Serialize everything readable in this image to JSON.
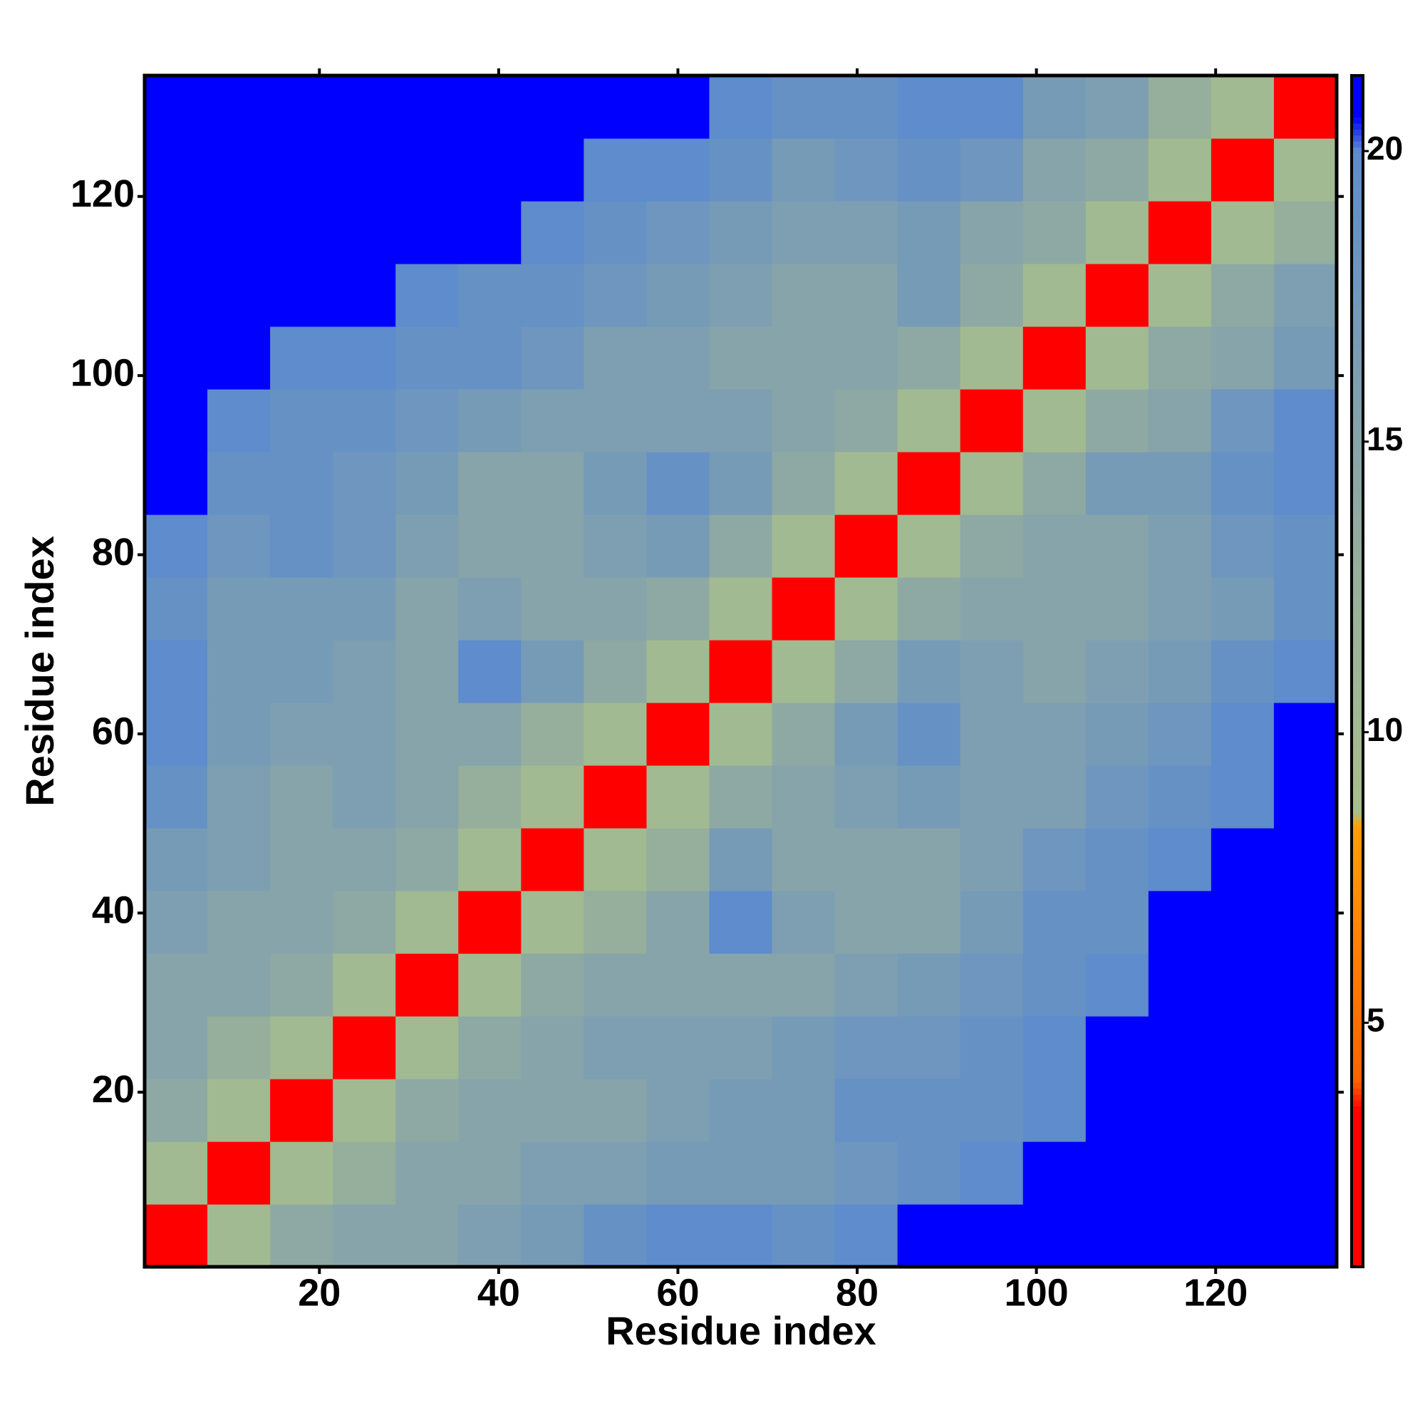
{
  "chart_data": {
    "type": "heatmap",
    "xlabel": "Residue index",
    "ylabel": "Residue index",
    "xbins": [
      0.5,
      7.5,
      14.5,
      21.5,
      28.5,
      35.5,
      42.5,
      49.5,
      56.5,
      63.5,
      70.5,
      77.5,
      84.5,
      91.5,
      98.5,
      105.5,
      112.5,
      119.5,
      126.5,
      133.5
    ],
    "ybins": [
      0.5,
      7.5,
      14.5,
      21.5,
      28.5,
      35.5,
      42.5,
      49.5,
      56.5,
      63.5,
      70.5,
      77.5,
      84.5,
      91.5,
      98.5,
      105.5,
      112.5,
      119.5,
      126.5,
      133.5
    ],
    "xlim": [
      0.5,
      133.5
    ],
    "ylim": [
      0.5,
      133.5
    ],
    "xticks": [
      20,
      40,
      60,
      80,
      100,
      120
    ],
    "yticks": [
      20,
      40,
      60,
      80,
      100,
      120
    ],
    "zlim": [
      0.8,
      21.3
    ],
    "zticks": [
      5,
      10,
      15,
      20
    ],
    "colorscale": [
      [
        0.8,
        "#ff0000"
      ],
      [
        3.5,
        "#ff0000"
      ],
      [
        4.0,
        "#ff6000"
      ],
      [
        8.4,
        "#ffa000"
      ],
      [
        8.6,
        "#a8bf8c"
      ],
      [
        13,
        "#96ae9c"
      ],
      [
        20,
        "#5e8ccc"
      ],
      [
        20.6,
        "#0000ff"
      ]
    ],
    "z": [
      [
        3,
        10,
        14,
        15,
        15,
        16,
        17,
        19,
        20,
        20,
        19,
        20,
        21,
        21,
        21,
        21,
        21,
        21,
        21
      ],
      [
        10,
        3,
        10,
        13,
        15,
        15,
        16,
        16,
        17,
        17,
        17,
        18,
        19,
        20,
        21,
        21,
        21,
        21,
        21
      ],
      [
        14,
        10,
        3,
        10,
        14,
        15,
        15,
        15,
        16,
        17,
        17,
        19,
        19,
        19,
        20,
        21,
        21,
        21,
        21
      ],
      [
        15,
        13,
        10,
        3,
        10,
        14,
        15,
        16,
        16,
        16,
        17,
        18,
        18,
        19,
        20,
        21,
        21,
        21,
        21
      ],
      [
        15,
        15,
        14,
        10,
        3,
        10,
        14,
        15,
        15,
        15,
        15,
        16,
        17,
        18,
        19,
        20,
        21,
        21,
        21
      ],
      [
        16,
        15,
        15,
        14,
        10,
        3,
        10,
        13,
        15,
        20,
        16,
        15,
        15,
        17,
        19,
        19,
        21,
        21,
        21
      ],
      [
        17,
        16,
        15,
        15,
        14,
        10,
        3,
        10,
        13,
        17,
        15,
        15,
        15,
        16,
        18,
        19,
        20,
        21,
        21
      ],
      [
        19,
        16,
        15,
        16,
        15,
        13,
        10,
        3,
        10,
        14,
        15,
        16,
        17,
        16,
        16,
        18,
        19,
        20,
        21
      ],
      [
        20,
        17,
        16,
        16,
        15,
        15,
        13,
        10,
        3,
        10,
        14,
        17,
        19,
        16,
        16,
        17,
        18,
        20,
        21
      ],
      [
        20,
        17,
        17,
        16,
        15,
        20,
        17,
        14,
        10,
        3,
        10,
        14,
        17,
        16,
        15,
        16,
        17,
        19,
        20
      ],
      [
        19,
        17,
        17,
        17,
        15,
        16,
        15,
        15,
        14,
        10,
        3,
        10,
        14,
        15,
        15,
        15,
        16,
        17,
        19
      ],
      [
        20,
        18,
        19,
        18,
        16,
        15,
        15,
        16,
        17,
        14,
        10,
        3,
        10,
        14,
        15,
        15,
        16,
        18,
        19
      ],
      [
        21,
        19,
        19,
        18,
        17,
        15,
        15,
        17,
        19,
        17,
        14,
        10,
        3,
        10,
        14,
        17,
        17,
        19,
        20
      ],
      [
        21,
        20,
        19,
        19,
        18,
        17,
        16,
        16,
        16,
        16,
        15,
        14,
        10,
        3,
        10,
        14,
        15,
        18,
        20
      ],
      [
        21,
        21,
        20,
        20,
        19,
        19,
        18,
        16,
        16,
        15,
        15,
        15,
        14,
        10,
        3,
        10,
        14,
        15,
        17
      ],
      [
        21,
        21,
        21,
        21,
        20,
        19,
        19,
        18,
        17,
        16,
        15,
        15,
        17,
        14,
        10,
        3,
        10,
        14,
        16
      ],
      [
        21,
        21,
        21,
        21,
        21,
        21,
        20,
        19,
        18,
        17,
        16,
        16,
        17,
        15,
        14,
        10,
        3,
        10,
        13
      ],
      [
        21,
        21,
        21,
        21,
        21,
        21,
        21,
        20,
        20,
        19,
        17,
        18,
        19,
        18,
        15,
        14,
        10,
        3,
        10
      ],
      [
        21,
        21,
        21,
        21,
        21,
        21,
        21,
        21,
        21,
        20,
        19,
        19,
        20,
        20,
        17,
        16,
        13,
        10,
        3
      ]
    ]
  }
}
